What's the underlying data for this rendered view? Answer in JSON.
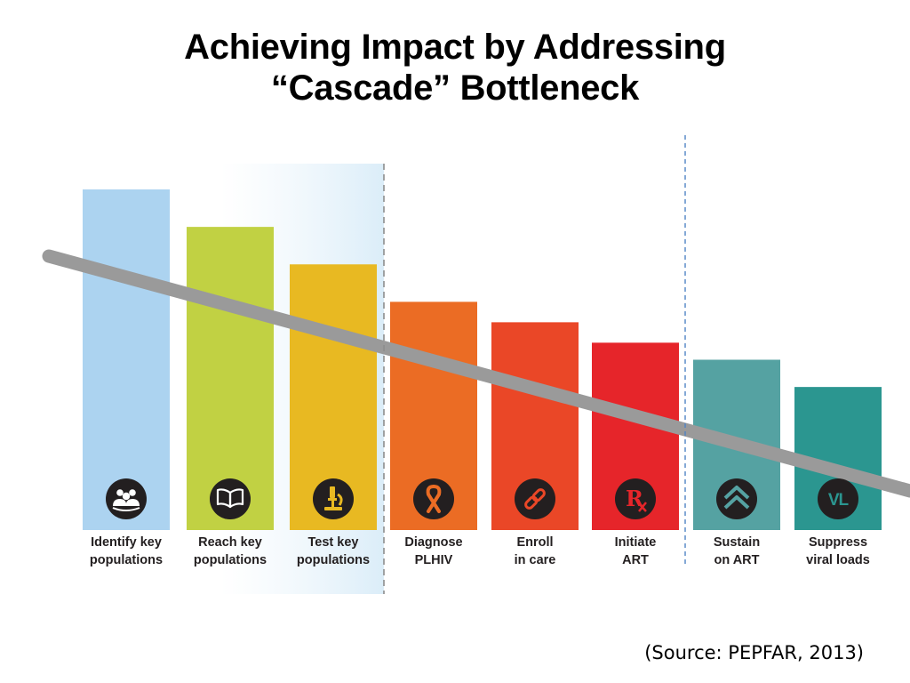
{
  "title_line1": "Achieving Impact by Addressing",
  "title_line2": "“Cascade” Bottleneck",
  "source": "(Source: PEPFAR, 2013)",
  "chart_data": {
    "type": "bar",
    "title": "Achieving Impact by Addressing “Cascade” Bottleneck",
    "xlabel": "",
    "ylabel": "",
    "grid": false,
    "legend": "none",
    "ylim": [
      0,
      100
    ],
    "categories": [
      [
        "Identify key",
        "populations"
      ],
      [
        "Reach key",
        "populations"
      ],
      [
        "Test key",
        "populations"
      ],
      [
        "Diagnose",
        "PLHIV"
      ],
      [
        "Enroll",
        "in care"
      ],
      [
        "Initiate",
        "ART"
      ],
      [
        "Sustain",
        "on ART"
      ],
      [
        "Suppress",
        "viral loads"
      ]
    ],
    "values": [
      100,
      89,
      78,
      67,
      61,
      55,
      50,
      42
    ],
    "colors": [
      "#acd3f0",
      "#c1d143",
      "#e8b922",
      "#eb6c24",
      "#ea4727",
      "#e6252a",
      "#55a2a2",
      "#2b9690"
    ],
    "icons": [
      "people-icon",
      "book-icon",
      "microscope-icon",
      "ribbon-icon",
      "chain-link-icon",
      "rx-icon",
      "chevrons-up-icon",
      "vl-icon"
    ],
    "icon_text_vl": "VL",
    "icon_text_rx": "R",
    "annotations": [
      "Bottleneck trend line crossing bars",
      "Dashed divider after Test key populations",
      "Dashed divider after Initiate ART"
    ]
  }
}
